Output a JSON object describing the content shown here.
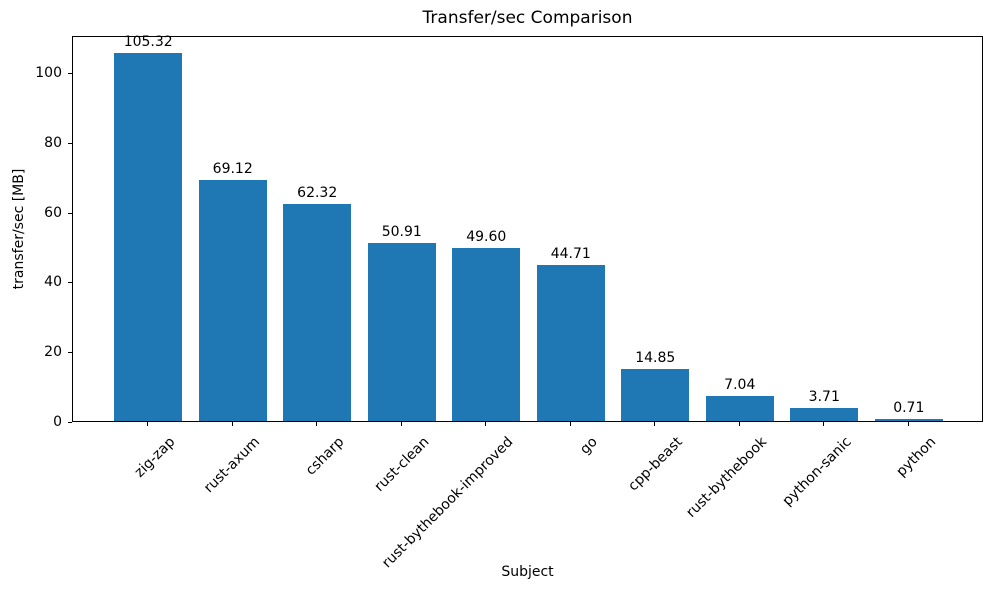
{
  "chart_data": {
    "type": "bar",
    "title": "Transfer/sec Comparison",
    "xlabel": "Subject",
    "ylabel": "transfer/sec [MB]",
    "categories": [
      "zig-zap",
      "rust-axum",
      "csharp",
      "rust-clean",
      "rust-bythebook-improved",
      "go",
      "cpp-beast",
      "rust-bythebook",
      "python-sanic",
      "python"
    ],
    "values": [
      105.32,
      69.12,
      62.32,
      50.91,
      49.6,
      44.71,
      14.85,
      7.04,
      3.71,
      0.71
    ],
    "value_labels": [
      "105.32",
      "69.12",
      "62.32",
      "50.91",
      "49.60",
      "44.71",
      "14.85",
      "7.04",
      "3.71",
      "0.71"
    ],
    "yticks": [
      0,
      20,
      40,
      60,
      80,
      100
    ],
    "ylim": [
      0,
      110.6
    ],
    "bar_color": "#1f77b4",
    "axis_color": "#000000",
    "background_color": "#ffffff",
    "grid": false,
    "legend_position": "none",
    "x_tick_rotation_deg": 45
  }
}
